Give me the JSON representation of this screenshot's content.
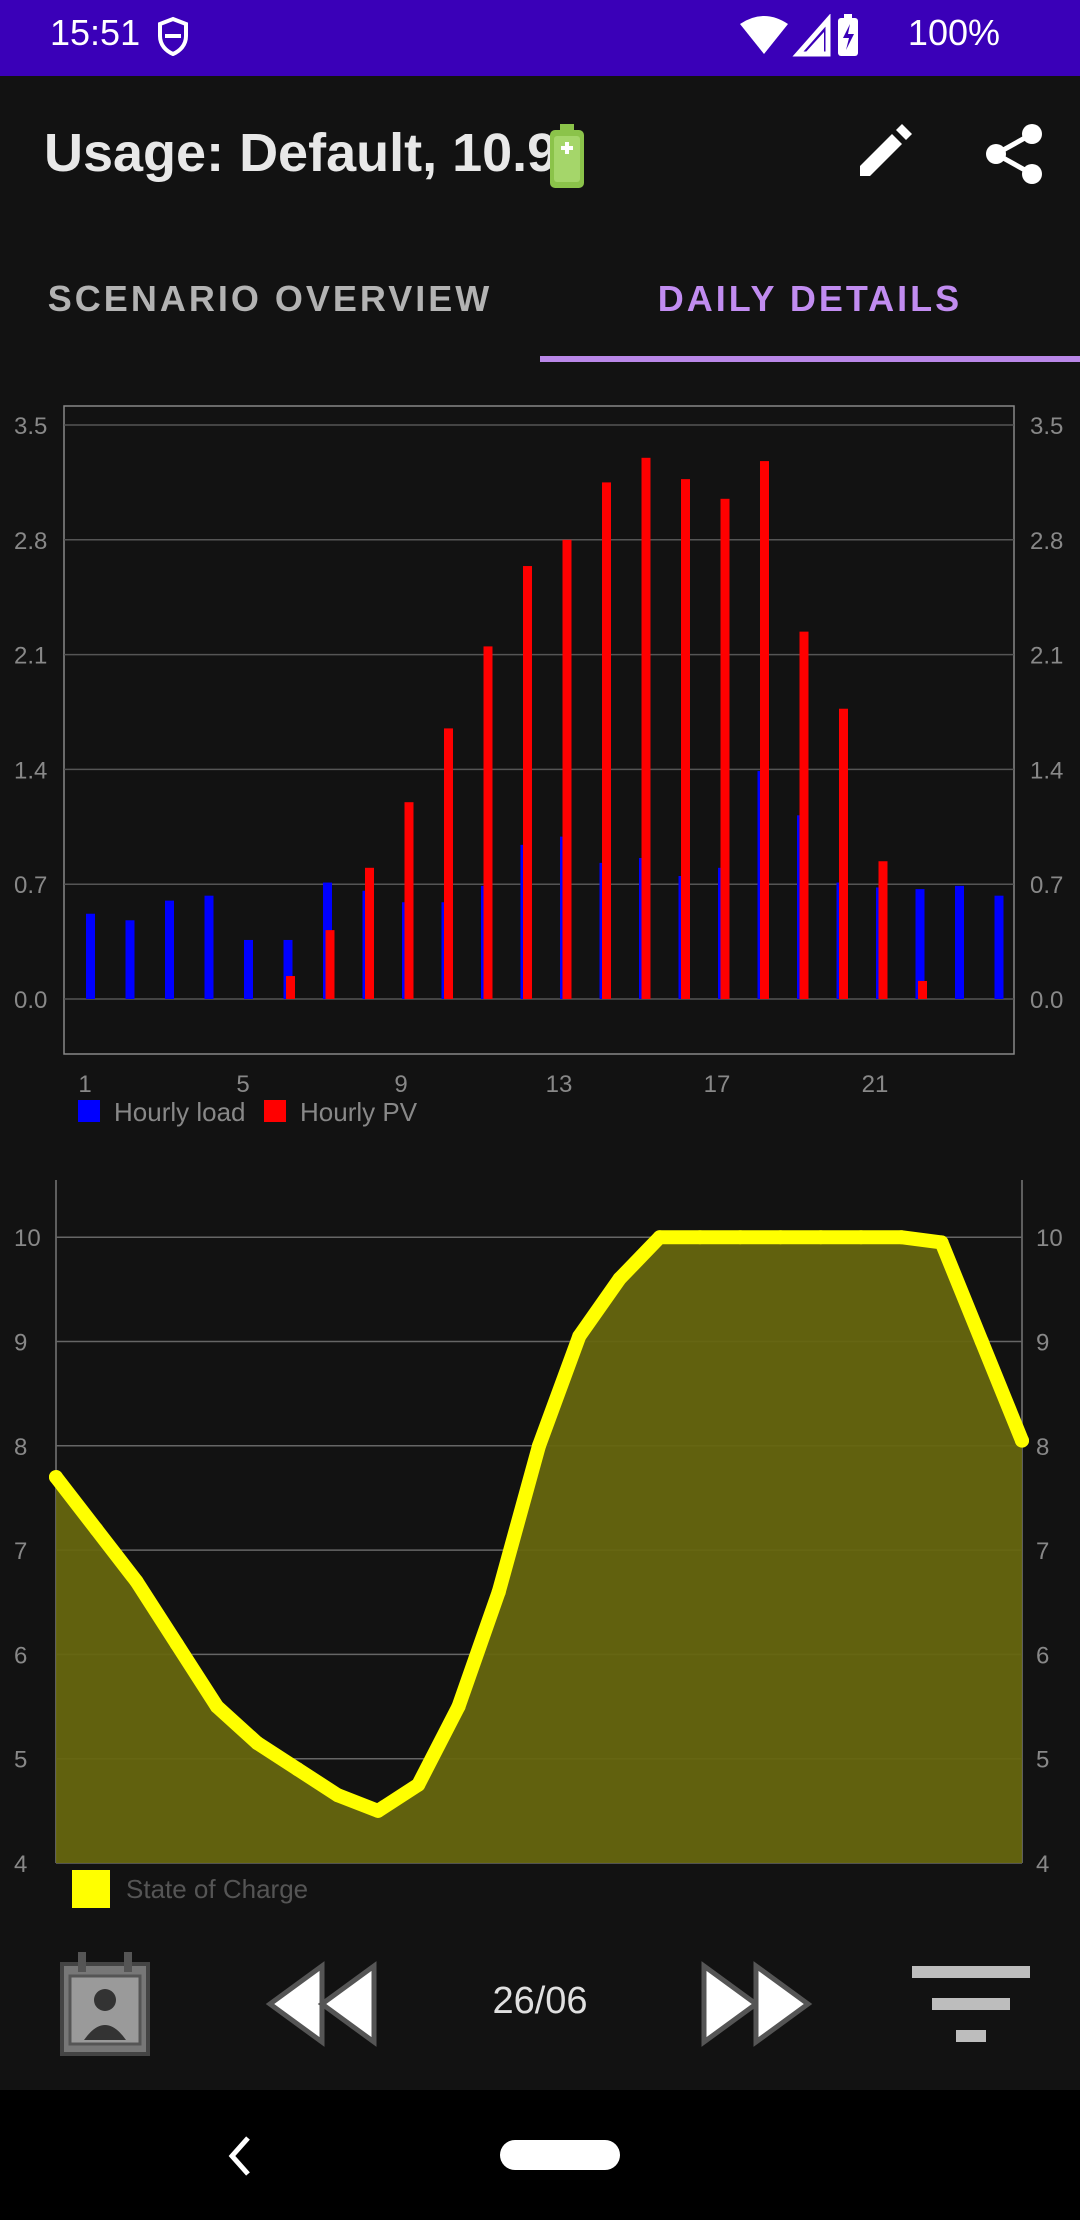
{
  "status_bar": {
    "time": "15:51",
    "battery_percent": "100%",
    "icons": [
      "shield-icon",
      "wifi-icon",
      "signal-icon",
      "battery-charging-icon"
    ]
  },
  "app_bar": {
    "title": "Usage: Default, 10.9",
    "title_emoji": "battery-icon",
    "actions": [
      "edit-icon",
      "share-icon"
    ]
  },
  "tabs": [
    {
      "label": "SCENARIO OVERVIEW",
      "active": false
    },
    {
      "label": "DAILY DETAILS",
      "active": true
    }
  ],
  "colors": {
    "status_bar": "#3a00b8",
    "accent": "#c18cf0",
    "load": "#0000ff",
    "pv": "#ff0000",
    "soc_line": "#ffff00",
    "soc_fill": "#66660f"
  },
  "chart_data": [
    {
      "type": "bar",
      "y_ticks": [
        "0.0",
        "0.7",
        "1.4",
        "2.1",
        "2.8",
        "3.5"
      ],
      "x_ticks": [
        "1",
        "5",
        "9",
        "13",
        "17",
        "21"
      ],
      "ylim": [
        0,
        3.5
      ],
      "x": [
        1,
        2,
        3,
        4,
        5,
        6,
        7,
        8,
        9,
        10,
        11,
        12,
        13,
        14,
        15,
        16,
        17,
        18,
        19,
        20,
        21,
        22,
        23,
        24
      ],
      "series": [
        {
          "name": "Hourly load",
          "values": [
            0.52,
            0.48,
            0.6,
            0.63,
            0.36,
            0.36,
            0.71,
            0.66,
            0.59,
            0.59,
            0.69,
            0.94,
            0.99,
            0.83,
            0.86,
            0.75,
            0.8,
            1.39,
            1.12,
            0.71,
            0.68,
            0.67,
            0.69,
            0.63
          ]
        },
        {
          "name": "Hourly PV",
          "values": [
            0,
            0,
            0,
            0,
            0,
            0.14,
            0.42,
            0.8,
            1.2,
            1.65,
            2.15,
            2.64,
            2.8,
            3.15,
            3.3,
            3.17,
            3.05,
            3.28,
            2.24,
            1.77,
            0.84,
            0.11,
            0,
            0
          ]
        }
      ],
      "legend_position": "bottom-left",
      "grid": true
    },
    {
      "type": "area",
      "y_ticks": [
        "4",
        "5",
        "6",
        "7",
        "8",
        "9",
        "10"
      ],
      "ylim": [
        4,
        10.6
      ],
      "series": [
        {
          "name": "State of Charge",
          "x": [
            0,
            1,
            2,
            3,
            4,
            5,
            6,
            7,
            8,
            9,
            10,
            11,
            12,
            13,
            14,
            15,
            16,
            17,
            18,
            19,
            20,
            21,
            22,
            23,
            24
          ],
          "values": [
            7.7,
            7.2,
            6.7,
            6.1,
            5.5,
            5.15,
            4.9,
            4.65,
            4.5,
            4.75,
            5.5,
            6.6,
            8.0,
            9.05,
            9.6,
            10.0,
            10.0,
            10.0,
            10.0,
            10.0,
            10.0,
            10.0,
            9.95,
            9.0,
            8.05
          ]
        }
      ],
      "legend_position": "bottom-left",
      "grid": true
    }
  ],
  "bottom_bar": {
    "date": "26/06",
    "icons": [
      "calendar-person-icon",
      "rewind-icon",
      "fast-forward-icon",
      "filter-icon"
    ]
  },
  "nav_bar": {
    "icons": [
      "back-icon",
      "home-pill"
    ]
  }
}
